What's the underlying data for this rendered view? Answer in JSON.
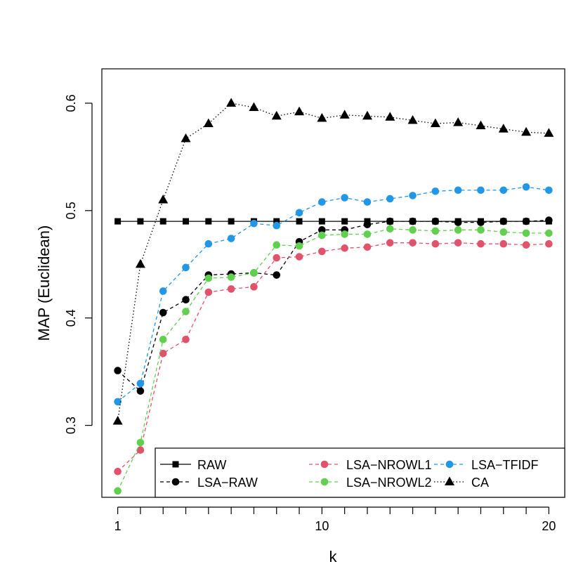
{
  "chart_data": {
    "type": "line",
    "title": "",
    "xlabel": "k",
    "ylabel": "MAP (Euclidean)",
    "xlim": [
      0.3,
      20.7
    ],
    "ylim": [
      0.233,
      0.632
    ],
    "x_ticks": [
      1,
      10,
      20
    ],
    "x_minor_ticks": [
      2,
      3,
      4,
      5,
      6,
      7,
      8,
      9,
      11,
      12,
      13,
      14,
      15,
      16,
      17,
      18,
      19
    ],
    "y_ticks": [
      0.3,
      0.4,
      0.5,
      0.6
    ],
    "grid": false,
    "legend_position": "bottom-right",
    "x": [
      1,
      2,
      3,
      4,
      5,
      6,
      7,
      8,
      9,
      10,
      11,
      12,
      13,
      14,
      15,
      16,
      17,
      18,
      19,
      20
    ],
    "series": [
      {
        "name": "RAW",
        "color": "#000000",
        "marker": "square",
        "linestyle": "solid",
        "values": [
          0.49,
          0.49,
          0.49,
          0.49,
          0.49,
          0.49,
          0.49,
          0.49,
          0.49,
          0.49,
          0.49,
          0.49,
          0.49,
          0.49,
          0.49,
          0.49,
          0.49,
          0.49,
          0.49,
          0.49
        ]
      },
      {
        "name": "LSA−RAW",
        "color": "#000000",
        "marker": "circle",
        "linestyle": "dashed",
        "values": [
          0.351,
          0.332,
          0.405,
          0.417,
          0.44,
          0.441,
          0.442,
          0.44,
          0.471,
          0.482,
          0.482,
          0.487,
          0.49,
          0.49,
          0.49,
          0.489,
          0.489,
          0.49,
          0.49,
          0.491
        ]
      },
      {
        "name": "LSA−NROWL1",
        "color": "#DF536B",
        "marker": "circle",
        "linestyle": "dashed",
        "values": [
          0.257,
          0.277,
          0.367,
          0.38,
          0.424,
          0.427,
          0.429,
          0.456,
          0.457,
          0.462,
          0.465,
          0.466,
          0.47,
          0.47,
          0.469,
          0.47,
          0.469,
          0.469,
          0.468,
          0.469
        ]
      },
      {
        "name": "LSA−NROWL2",
        "color": "#61D04F",
        "marker": "circle",
        "linestyle": "dashed",
        "values": [
          0.239,
          0.284,
          0.38,
          0.406,
          0.437,
          0.438,
          0.442,
          0.468,
          0.467,
          0.477,
          0.478,
          0.478,
          0.483,
          0.482,
          0.481,
          0.482,
          0.482,
          0.48,
          0.479,
          0.479
        ]
      },
      {
        "name": "LSA−TFIDF",
        "color": "#2297E6",
        "marker": "circle",
        "linestyle": "dashed",
        "values": [
          0.322,
          0.339,
          0.425,
          0.447,
          0.469,
          0.474,
          0.488,
          0.486,
          0.498,
          0.508,
          0.512,
          0.508,
          0.511,
          0.514,
          0.518,
          0.519,
          0.519,
          0.519,
          0.522,
          0.519
        ]
      },
      {
        "name": "CA",
        "color": "#000000",
        "marker": "triangle",
        "linestyle": "dotted",
        "values": [
          0.304,
          0.45,
          0.51,
          0.567,
          0.581,
          0.6,
          0.596,
          0.588,
          0.592,
          0.586,
          0.589,
          0.588,
          0.587,
          0.584,
          0.581,
          0.582,
          0.579,
          0.576,
          0.573,
          0.572
        ]
      }
    ]
  }
}
